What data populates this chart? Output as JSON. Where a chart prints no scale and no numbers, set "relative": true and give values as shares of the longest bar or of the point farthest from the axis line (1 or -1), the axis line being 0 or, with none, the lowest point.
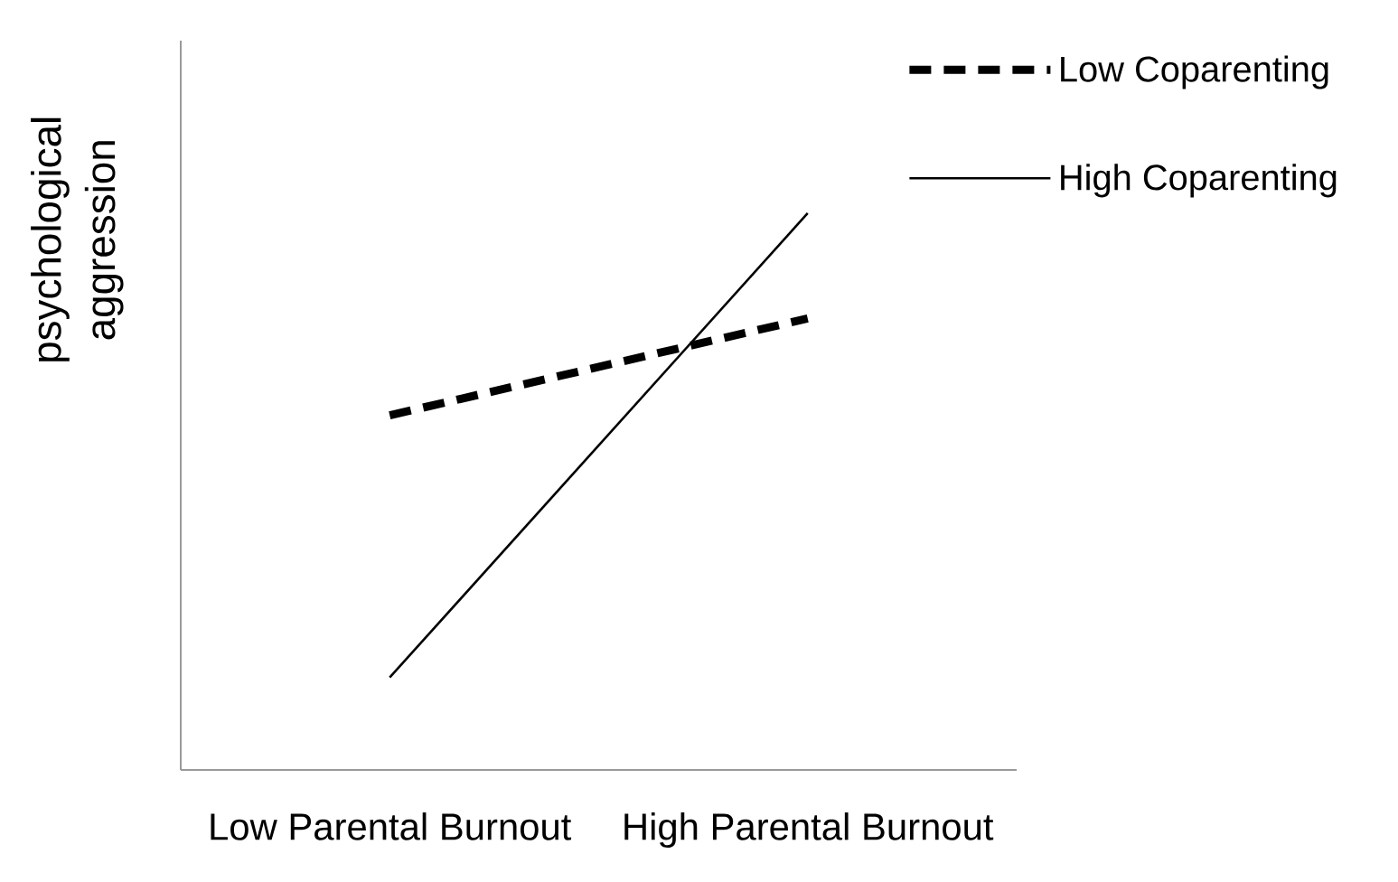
{
  "chart_data": {
    "type": "line",
    "relative": true,
    "ylabel": "psychological aggression",
    "categories": [
      "Low Parental Burnout",
      "High Parental Burnout"
    ],
    "legend": "top right",
    "series": [
      {
        "name": "Low Coparenting",
        "color": "#000000",
        "line_style": "dashed",
        "values": [
          0.637,
          0.811
        ]
      },
      {
        "name": "High Coparenting",
        "color": "#000000",
        "line_style": "solid",
        "values": [
          0.166,
          1.0
        ]
      }
    ]
  }
}
